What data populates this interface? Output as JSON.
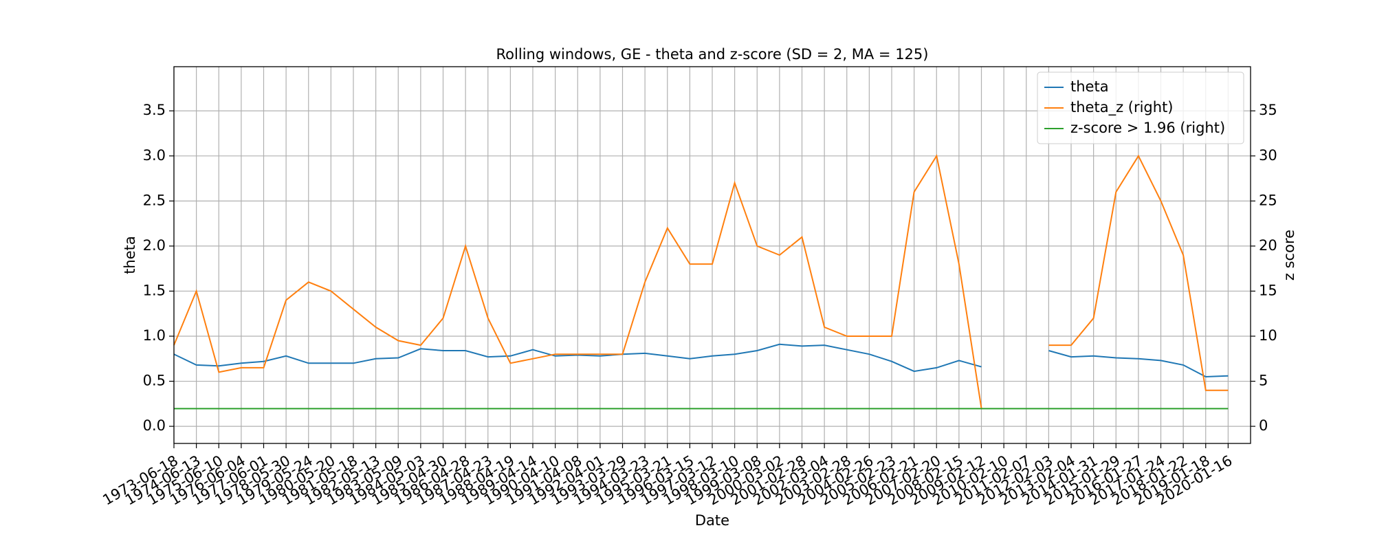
{
  "chart_data": {
    "type": "line",
    "title": "Rolling windows, GE - theta and z-score (SD = 2, MA = 125)",
    "xlabel": "Date",
    "ylabel": "theta",
    "y2label": "z score",
    "x": [
      "1973-06-18",
      "1974-06-13",
      "1975-06-10",
      "1976-06-04",
      "1977-06-01",
      "1978-05-30",
      "1979-05-24",
      "1980-05-20",
      "1981-05-18",
      "1982-05-13",
      "1983-05-09",
      "1984-05-03",
      "1985-04-30",
      "1986-04-28",
      "1987-04-23",
      "1988-04-19",
      "1989-04-14",
      "1990-04-10",
      "1991-04-08",
      "1992-04-01",
      "1993-03-29",
      "1994-03-23",
      "1995-03-21",
      "1996-03-15",
      "1997-03-12",
      "1998-03-10",
      "1999-03-08",
      "2000-03-02",
      "2001-02-28",
      "2002-03-04",
      "2003-02-28",
      "2004-02-26",
      "2005-02-23",
      "2006-02-21",
      "2007-02-20",
      "2008-02-15",
      "2009-02-12",
      "2010-02-10",
      "2011-02-07",
      "2012-02-03",
      "2013-02-04",
      "2014-01-31",
      "2015-01-29",
      "2016-01-27",
      "2017-01-24",
      "2018-01-22",
      "2019-01-18",
      "2020-01-16"
    ],
    "series": [
      {
        "name": "theta",
        "color": "#1f77b4",
        "axis": "y",
        "values": [
          0.8,
          0.68,
          0.67,
          0.7,
          0.72,
          0.78,
          0.7,
          0.7,
          0.7,
          0.75,
          0.76,
          0.86,
          0.84,
          0.84,
          0.77,
          0.78,
          0.85,
          0.78,
          0.79,
          0.78,
          0.8,
          0.81,
          0.78,
          0.75,
          0.78,
          0.8,
          0.84,
          0.91,
          0.89,
          0.9,
          0.85,
          0.8,
          0.72,
          0.61,
          0.65,
          0.73,
          0.66,
          null,
          null,
          0.84,
          0.77,
          0.78,
          0.76,
          0.75,
          0.73,
          0.68,
          0.55,
          0.56
        ]
      },
      {
        "name": "theta_z (right)",
        "color": "#ff7f0e",
        "axis": "y2",
        "values": [
          9,
          15,
          6,
          6.5,
          6.5,
          14,
          16,
          15,
          13,
          11,
          9.5,
          9,
          12,
          20,
          12,
          7,
          7.5,
          8,
          8,
          8,
          8,
          16,
          22,
          18,
          18,
          27,
          20,
          19,
          21,
          11,
          10,
          10,
          10,
          26,
          30,
          18,
          2,
          null,
          null,
          9,
          9,
          12,
          26,
          30,
          25,
          19,
          4,
          4
        ]
      },
      {
        "name": "z-score > 1.96 (right)",
        "color": "#2ca02c",
        "axis": "y2",
        "values": [
          1.96,
          1.96,
          1.96,
          1.96,
          1.96,
          1.96,
          1.96,
          1.96,
          1.96,
          1.96,
          1.96,
          1.96,
          1.96,
          1.96,
          1.96,
          1.96,
          1.96,
          1.96,
          1.96,
          1.96,
          1.96,
          1.96,
          1.96,
          1.96,
          1.96,
          1.96,
          1.96,
          1.96,
          1.96,
          1.96,
          1.96,
          1.96,
          1.96,
          1.96,
          1.96,
          1.96,
          1.96,
          1.96,
          1.96,
          1.96,
          1.96,
          1.96,
          1.96,
          1.96,
          1.96,
          1.96,
          1.96,
          1.96
        ]
      }
    ],
    "ylim": [
      -0.19,
      3.99
    ],
    "yticks": [
      {
        "value": 0,
        "label": "0.0"
      },
      0.5,
      {
        "value": 1,
        "label": "1.0"
      },
      1.5,
      {
        "value": 2,
        "label": "2.0"
      },
      2.5,
      {
        "value": 3,
        "label": "3.0"
      },
      3.5
    ],
    "y2lim": [
      -1.9,
      39.9
    ],
    "y2ticks": [
      0,
      5,
      10,
      15,
      20,
      25,
      30,
      35
    ],
    "grid": true,
    "legend": "upper right"
  }
}
